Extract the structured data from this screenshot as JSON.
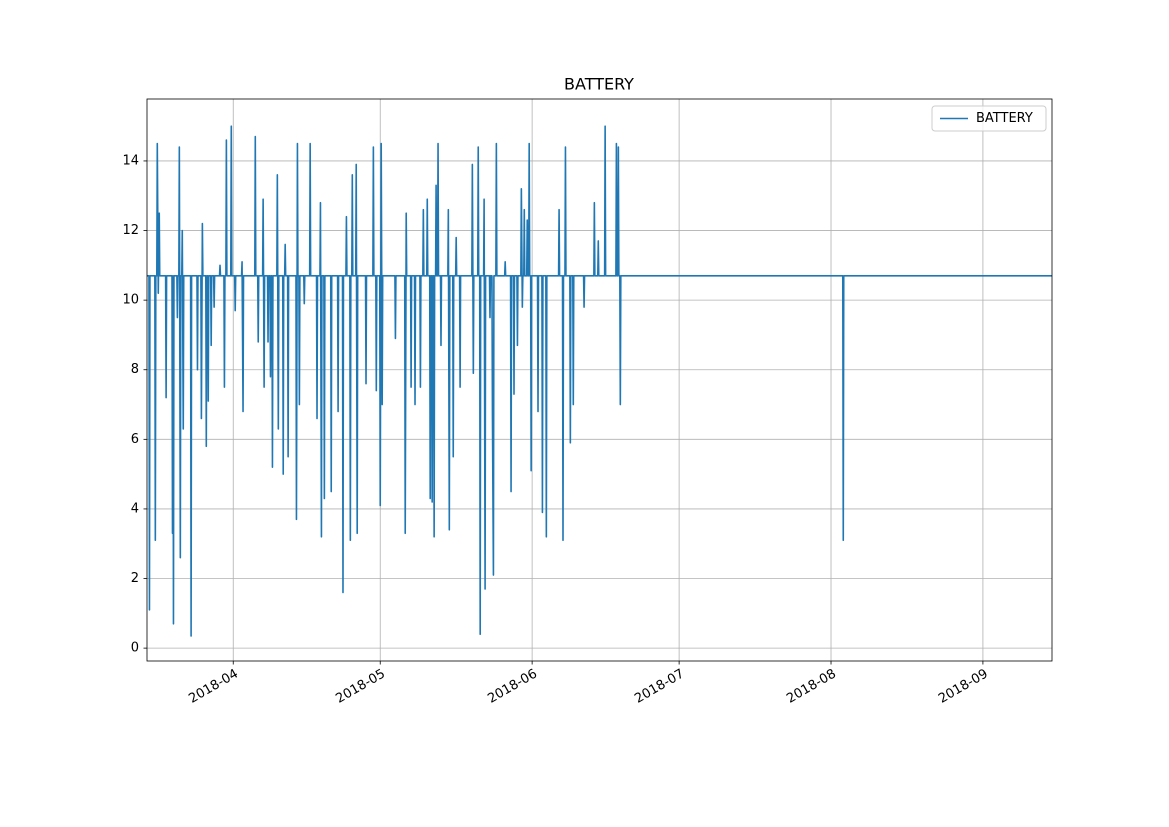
{
  "chart_data": {
    "type": "line",
    "title": "BATTERY",
    "x": [
      17604.4,
      17604.8,
      17604.9,
      17605.0,
      17606.0,
      17606.1,
      17606.2,
      17606.4,
      17606.5,
      17606.7,
      17606.9,
      17607.0,
      17608.2,
      17608.3,
      17608.4,
      17609.5,
      17609.6,
      17609.7,
      17609.8,
      17609.9,
      17610.5,
      17610.6,
      17610.7,
      17610.9,
      17611.0,
      17611.2,
      17611.3,
      17611.5,
      17611.6,
      17611.8,
      17611.9,
      17613.3,
      17613.4,
      17613.5,
      17614.6,
      17614.7,
      17614.8,
      17615.4,
      17615.5,
      17615.7,
      17615.8,
      17616.4,
      17616.5,
      17616.6,
      17616.8,
      17616.9,
      17617.0,
      17617.4,
      17617.5,
      17617.6,
      17618.0,
      17618.1,
      17618.2,
      17619.2,
      17619.3,
      17619.4,
      17620.1,
      17620.2,
      17620.3,
      17620.5,
      17620.6,
      17620.7,
      17621.5,
      17621.6,
      17621.7,
      17622.3,
      17622.4,
      17622.5,
      17623.7,
      17623.8,
      17624.0,
      17624.1,
      17626.4,
      17626.5,
      17626.6,
      17627.0,
      17627.1,
      17627.2,
      17628.0,
      17628.1,
      17628.3,
      17628.4,
      17629.0,
      17629.1,
      17629.2,
      17629.5,
      17629.6,
      17629.7,
      17629.9,
      17630.0,
      17630.1,
      17630.9,
      17631.0,
      17631.2,
      17631.3,
      17632.1,
      17632.2,
      17632.3,
      17632.5,
      17632.6,
      17632.7,
      17633.1,
      17633.2,
      17633.3,
      17634.8,
      17634.9,
      17635.1,
      17635.2,
      17635.4,
      17635.5,
      17635.6,
      17636.4,
      17636.5,
      17636.6,
      17637.6,
      17637.7,
      17637.8,
      17639.0,
      17639.1,
      17639.2,
      17639.7,
      17639.8,
      17640.0,
      17640.1,
      17640.5,
      17640.6,
      17640.7,
      17641.9,
      17642.0,
      17642.1,
      17643.3,
      17643.4,
      17643.5,
      17644.3,
      17644.4,
      17644.5,
      17645.0,
      17645.1,
      17645.2,
      17645.8,
      17645.9,
      17646.0,
      17646.2,
      17646.3,
      17646.4,
      17647.0,
      17647.1,
      17647.3,
      17647.4,
      17649.0,
      17649.1,
      17649.2,
      17650.5,
      17650.6,
      17650.7,
      17651.1,
      17651.2,
      17651.3,
      17651.9,
      17652.0,
      17652.2,
      17652.4,
      17652.5,
      17655.0,
      17655.1,
      17655.2,
      17657.0,
      17657.1,
      17657.3,
      17657.4,
      17658.2,
      17658.3,
      17658.4,
      17659.0,
      17659.1,
      17659.2,
      17660.1,
      17660.2,
      17660.3,
      17660.7,
      17660.8,
      17660.9,
      17661.5,
      17661.6,
      17661.7,
      17662.1,
      17662.2,
      17662.3,
      17662.5,
      17662.6,
      17662.7,
      17662.9,
      17663.0,
      17663.1,
      17663.3,
      17663.4,
      17663.5,
      17663.7,
      17663.8,
      17663.9,
      17664.3,
      17664.4,
      17664.5,
      17665.8,
      17665.9,
      17666.1,
      17666.2,
      17666.8,
      17666.9,
      17667.0,
      17667.4,
      17667.5,
      17667.6,
      17668.2,
      17668.3,
      17668.4,
      17670.7,
      17670.8,
      17671.0,
      17671.1,
      17671.9,
      17672.0,
      17672.1,
      17672.3,
      17672.4,
      17672.5,
      17673.1,
      17673.2,
      17673.4,
      17673.5,
      17674.3,
      17674.4,
      17674.5,
      17674.8,
      17674.9,
      17675.1,
      17675.2,
      17675.6,
      17675.7,
      17675.8,
      17677.4,
      17677.5,
      17677.6,
      17678.6,
      17678.7,
      17678.8,
      17679.2,
      17679.3,
      17679.4,
      17679.9,
      17680.0,
      17680.1,
      17680.7,
      17680.8,
      17681.0,
      17681.1,
      17681.3,
      17681.4,
      17681.5,
      17681.9,
      17682.0,
      17682.1,
      17682.3,
      17682.4,
      17682.5,
      17682.7,
      17682.8,
      17682.9,
      17684.1,
      17684.2,
      17684.3,
      17685.0,
      17685.1,
      17685.2,
      17685.8,
      17685.9,
      17686.0,
      17688.4,
      17688.5,
      17688.6,
      17689.2,
      17689.3,
      17689.4,
      17689.7,
      17689.8,
      17689.9,
      17690.7,
      17690.8,
      17690.9,
      17691.3,
      17691.4,
      17691.5,
      17693.5,
      17693.6,
      17693.7,
      17695.6,
      17695.7,
      17695.8,
      17696.4,
      17696.5,
      17696.6,
      17697.8,
      17697.9,
      17698.0,
      17700.1,
      17700.2,
      17700.3,
      17700.5,
      17700.6,
      17700.7,
      17700.9,
      17701.0,
      17701.1,
      17710.0,
      17720.0,
      17730.0,
      17746.4,
      17746.5,
      17746.6,
      17760.0,
      17789.1
    ],
    "series": [
      {
        "name": "BATTERY",
        "color": "#1f77b4",
        "values": [
          10.7,
          10.7,
          1.1,
          10.7,
          10.7,
          3.1,
          10.7,
          10.7,
          14.5,
          10.2,
          12.5,
          10.7,
          10.7,
          7.2,
          10.7,
          10.7,
          3.3,
          10.7,
          0.7,
          10.7,
          10.7,
          9.5,
          10.7,
          10.7,
          14.4,
          2.6,
          10.7,
          10.7,
          12.0,
          6.3,
          10.7,
          10.7,
          0.35,
          10.7,
          10.7,
          8.0,
          10.7,
          10.7,
          6.6,
          12.2,
          10.7,
          10.7,
          5.8,
          10.7,
          10.7,
          7.1,
          10.7,
          10.7,
          8.7,
          10.7,
          10.7,
          9.8,
          10.7,
          10.7,
          11.0,
          10.7,
          10.7,
          7.5,
          10.7,
          10.7,
          14.6,
          10.7,
          10.7,
          15.0,
          10.7,
          10.7,
          9.7,
          10.7,
          10.7,
          11.1,
          6.8,
          10.7,
          10.7,
          14.7,
          10.7,
          10.7,
          8.8,
          10.7,
          10.7,
          12.9,
          7.5,
          10.7,
          10.7,
          8.8,
          10.7,
          10.7,
          7.8,
          10.7,
          10.7,
          5.2,
          10.7,
          10.7,
          13.6,
          6.3,
          10.7,
          10.7,
          5.0,
          10.7,
          10.7,
          11.6,
          10.7,
          10.7,
          5.5,
          10.7,
          10.7,
          3.7,
          14.5,
          10.7,
          10.7,
          7.0,
          10.7,
          10.7,
          9.9,
          10.7,
          10.7,
          14.5,
          10.7,
          10.7,
          6.6,
          10.7,
          10.7,
          12.8,
          3.2,
          10.7,
          10.7,
          4.3,
          10.7,
          10.7,
          4.5,
          10.7,
          10.7,
          6.8,
          10.7,
          10.7,
          1.6,
          10.7,
          10.7,
          12.4,
          10.7,
          10.7,
          3.1,
          10.7,
          10.7,
          13.6,
          10.7,
          10.7,
          13.9,
          3.3,
          10.7,
          10.7,
          7.6,
          10.7,
          10.7,
          14.4,
          10.7,
          10.7,
          7.4,
          10.7,
          10.7,
          4.1,
          14.5,
          7.0,
          10.7,
          10.7,
          8.9,
          10.7,
          10.7,
          3.3,
          12.5,
          10.7,
          10.7,
          7.5,
          10.7,
          10.7,
          7.0,
          10.7,
          10.7,
          7.5,
          10.7,
          10.7,
          12.6,
          10.7,
          10.7,
          12.9,
          10.7,
          10.7,
          4.3,
          10.7,
          10.7,
          4.2,
          10.7,
          10.7,
          3.2,
          10.7,
          10.7,
          13.3,
          10.7,
          10.7,
          14.5,
          10.7,
          10.7,
          8.7,
          10.7,
          10.7,
          12.6,
          3.4,
          10.7,
          10.7,
          5.5,
          10.7,
          10.7,
          11.8,
          10.7,
          10.7,
          7.5,
          10.7,
          10.7,
          13.9,
          7.9,
          10.7,
          10.7,
          14.4,
          10.7,
          10.7,
          0.4,
          10.7,
          10.7,
          12.9,
          1.7,
          10.7,
          10.7,
          9.5,
          10.7,
          10.7,
          6.7,
          2.1,
          10.7,
          10.7,
          14.5,
          10.7,
          10.7,
          11.1,
          10.7,
          10.7,
          4.5,
          10.7,
          10.7,
          7.3,
          10.7,
          10.7,
          8.7,
          10.7,
          10.7,
          13.2,
          9.8,
          10.7,
          10.7,
          12.6,
          10.7,
          10.7,
          12.3,
          10.7,
          10.7,
          14.5,
          10.7,
          10.7,
          5.1,
          10.7,
          10.7,
          6.8,
          10.7,
          10.7,
          3.9,
          10.7,
          10.7,
          3.2,
          10.7,
          10.7,
          12.6,
          10.7,
          10.7,
          3.1,
          10.7,
          10.7,
          14.4,
          10.7,
          10.7,
          5.9,
          10.7,
          10.7,
          7.0,
          10.7,
          10.7,
          9.8,
          10.7,
          10.7,
          12.8,
          10.7,
          10.7,
          11.7,
          10.7,
          10.7,
          15.0,
          10.7,
          10.7,
          14.5,
          10.7,
          10.7,
          14.4,
          10.7,
          10.7,
          7.0,
          10.7,
          10.7,
          10.7,
          10.7,
          10.7,
          3.1,
          10.7,
          10.7,
          10.7
        ]
      }
    ],
    "xlim": [
      17604.4,
      17789.1
    ],
    "xticks": [
      {
        "value": 17622,
        "label": "2018-04"
      },
      {
        "value": 17652,
        "label": "2018-05"
      },
      {
        "value": 17683,
        "label": "2018-06"
      },
      {
        "value": 17713,
        "label": "2018-07"
      },
      {
        "value": 17744,
        "label": "2018-08"
      },
      {
        "value": 17775,
        "label": "2018-09"
      }
    ],
    "ylim": [
      -0.37,
      15.78
    ],
    "yticks": [
      0,
      2,
      4,
      6,
      8,
      10,
      12,
      14
    ],
    "grid": true,
    "legend": "upper right"
  }
}
